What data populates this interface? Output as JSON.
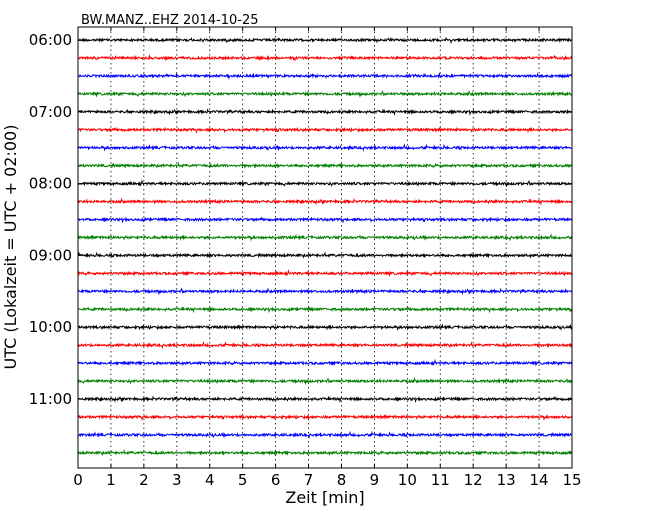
{
  "chart_data": {
    "type": "line",
    "title": "BW.MANZ..EHZ 2014-10-25",
    "xlabel": "Zeit  [min]",
    "ylabel": "UTC (Lokalzeit = UTC + 02:00)",
    "xlim": [
      0,
      15
    ],
    "x_ticks": [
      "0",
      "1",
      "2",
      "3",
      "4",
      "5",
      "6",
      "7",
      "8",
      "9",
      "10",
      "11",
      "12",
      "13",
      "14",
      "15"
    ],
    "y_ticks": [
      "06:00",
      "07:00",
      "08:00",
      "09:00",
      "10:00",
      "11:00"
    ],
    "grid_x": "dotted",
    "trace_interval_minutes": 15,
    "start_hour_utc": 6,
    "trace_count": 24,
    "series_colors": [
      "#000000",
      "#ff0000",
      "#0000ff",
      "#008000"
    ]
  }
}
